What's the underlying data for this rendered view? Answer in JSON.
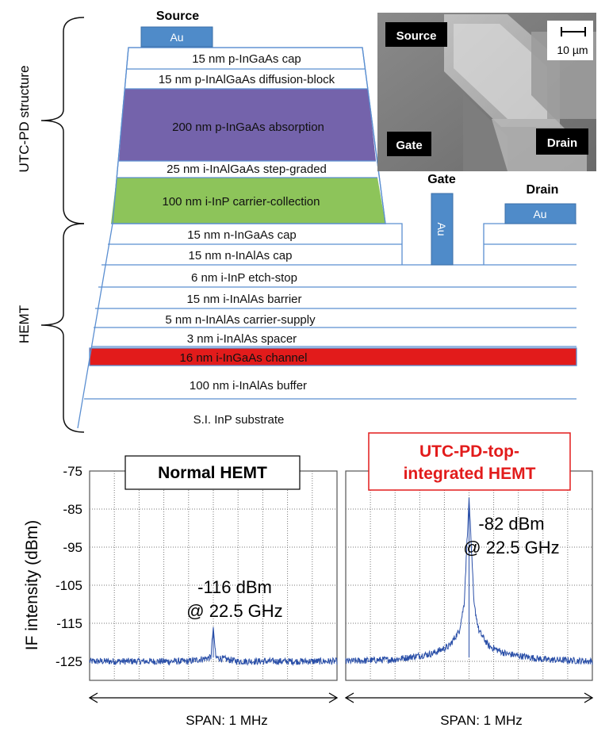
{
  "structure": {
    "brace_labels": {
      "utc_pd": "UTC-PD structure",
      "hemt": "HEMT"
    },
    "source": {
      "heading": "Source",
      "metal": "Au"
    },
    "gate": {
      "heading": "Gate",
      "metal": "Au"
    },
    "drain": {
      "heading": "Drain",
      "metal": "Au"
    },
    "layers": {
      "pingaas_cap": "15 nm p-InGaAs cap",
      "diffusion_block": "15 nm p-InAlGaAs diffusion-block",
      "absorption": "200 nm p-InGaAs absorption",
      "step_graded": "25 nm i-InAlGaAs step-graded",
      "carrier_collection": "100 nm i-InP carrier-collection",
      "ningaas_cap": "15 nm n-InGaAs cap",
      "ninalas_cap": "15 nm n-InAlAs cap",
      "etch_stop": "6 nm i-InP etch-stop",
      "barrier": "15 nm i-InAlAs barrier",
      "carrier_supply": "5 nm n-InAlAs carrier-supply",
      "spacer": "3 nm i-InAlAs spacer",
      "channel": "16 nm i-InGaAs channel",
      "buffer": "100 nm i-InAlAs buffer",
      "substrate": "S.I. InP substrate"
    },
    "layer_colors": {
      "absorption": "#7463ab",
      "carrier_collection": "#8dc45a",
      "channel": "#e21b1b",
      "metal": "#4f8bc9",
      "outline": "#5b8fd1"
    },
    "micrograph": {
      "source_tag": "Source",
      "gate_tag": "Gate",
      "drain_tag": "Drain",
      "scale": "10 µm"
    }
  },
  "spectra": {
    "y_axis_label": "IF intensity (dBm)",
    "span_label": "SPAN: 1 MHz",
    "panels": [
      {
        "title": "Normal HEMT",
        "annotation_line1": "-116 dBm",
        "annotation_line2": "@ 22.5 GHz",
        "color": "#000000"
      },
      {
        "title": "UTC-PD-top-integrated HEMT",
        "title_line1": "UTC-PD-top-",
        "title_line2": "integrated HEMT",
        "annotation_line1": "-82 dBm",
        "annotation_line2": "@ 22.5 GHz",
        "color": "#e21b1b"
      }
    ]
  },
  "chart_data": [
    {
      "type": "line",
      "title": "Normal HEMT",
      "ylabel": "IF intensity (dBm)",
      "xlabel": "SPAN: 1 MHz",
      "ylim": [
        -130,
        -75
      ],
      "yticks": [
        -125,
        -115,
        -105,
        -95,
        -85,
        -75
      ],
      "grid": true,
      "series": [
        {
          "x": [
            -0.5,
            -0.3,
            -0.1,
            -0.01,
            0.0,
            0.01,
            0.1,
            0.3,
            0.5
          ],
          "y": [
            -125,
            -125,
            -125,
            -124,
            -116,
            -124,
            -125,
            -125,
            -125
          ],
          "color": "#2a4fa8"
        }
      ],
      "annotations": [
        "-116 dBm",
        "@ 22.5 GHz"
      ]
    },
    {
      "type": "line",
      "title": "UTC-PD-top-integrated HEMT",
      "ylabel": "IF intensity (dBm)",
      "xlabel": "SPAN: 1 MHz",
      "ylim": [
        -130,
        -75
      ],
      "yticks": [
        -125,
        -115,
        -105,
        -95,
        -85,
        -75
      ],
      "grid": true,
      "series": [
        {
          "x": [
            -0.5,
            -0.3,
            -0.15,
            -0.08,
            -0.04,
            -0.02,
            0.0,
            0.02,
            0.04,
            0.08,
            0.15,
            0.3,
            0.5
          ],
          "y": [
            -125,
            -124.5,
            -123,
            -121,
            -117,
            -110,
            -82,
            -110,
            -117,
            -121,
            -123,
            -124.5,
            -125
          ],
          "color": "#2a4fa8"
        }
      ],
      "annotations": [
        "-82 dBm",
        "@ 22.5 GHz"
      ]
    }
  ]
}
